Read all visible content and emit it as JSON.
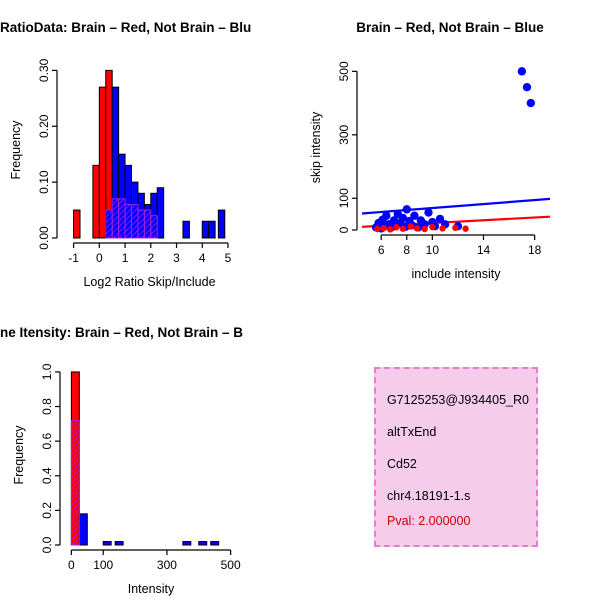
{
  "page": {
    "background": "#FFFFFF"
  },
  "colors": {
    "red": "#FF0000",
    "blue": "#0000FF",
    "purple": "#A020F0",
    "pval_red": "#CC0000"
  },
  "chart_data": [
    {
      "type": "bar",
      "title": "RatioData: Brain – Red, Not Brain – Blu",
      "xlabel": "Log2 Ratio Skip/Include",
      "ylabel": "Frequency",
      "xlim": [
        -1.45,
        5.35
      ],
      "ylim": [
        0,
        0.315
      ],
      "xticks": [
        -1,
        0,
        1,
        2,
        3,
        4,
        5
      ],
      "xtick_labels": [
        "-1",
        "0",
        "1",
        "2",
        "3",
        "4",
        "5"
      ],
      "yticks": [
        0,
        0.1,
        0.2,
        0.3
      ],
      "ytick_labels": [
        "0.00",
        "0.10",
        "0.20",
        "0.30"
      ],
      "bin_width": 0.25,
      "grid": false,
      "series": [
        {
          "name": "brain-red",
          "color": "#FF0000",
          "bins": [
            [
              -1,
              0.05
            ],
            [
              -0.25,
              0.13
            ],
            [
              0,
              0.27
            ],
            [
              0.25,
              0.3
            ],
            [
              0.5,
              0.08
            ],
            [
              0.75,
              0.07
            ],
            [
              1,
              0.06
            ],
            [
              1.25,
              0.06
            ],
            [
              1.5,
              0.05
            ],
            [
              1.75,
              0.05
            ]
          ]
        },
        {
          "name": "notbrain-blue",
          "color": "#0000FF",
          "bins": [
            [
              0.25,
              0.05
            ],
            [
              0.5,
              0.27
            ],
            [
              0.75,
              0.15
            ],
            [
              1,
              0.13
            ],
            [
              1.25,
              0.1
            ],
            [
              1.5,
              0.08
            ],
            [
              1.75,
              0.06
            ],
            [
              2,
              0.08
            ],
            [
              2.25,
              0.09
            ],
            [
              3.25,
              0.03
            ],
            [
              4,
              0.03
            ],
            [
              4.25,
              0.03
            ],
            [
              4.625,
              0.05
            ]
          ]
        },
        {
          "name": "overlap-purple",
          "color": "#A020F0",
          "hatch": true,
          "bins": [
            [
              0.25,
              0.05
            ],
            [
              0.5,
              0.07
            ],
            [
              0.75,
              0.07
            ],
            [
              1,
              0.06
            ],
            [
              1.25,
              0.06
            ],
            [
              1.5,
              0.05
            ],
            [
              1.75,
              0.05
            ],
            [
              2,
              0.04
            ]
          ]
        }
      ]
    },
    {
      "type": "scatter",
      "title": "Brain – Red, Not Brain – Blue",
      "xlabel": "include intensity",
      "ylabel": "skip intensity",
      "xlim": [
        4.5,
        19.2
      ],
      "ylim": [
        0,
        520
      ],
      "xticks": [
        6,
        8,
        10,
        14,
        18
      ],
      "xtick_labels": [
        "6",
        "8",
        "10",
        "14",
        "18"
      ],
      "yticks": [
        0,
        100,
        300,
        500
      ],
      "ytick_labels": [
        "0",
        "100",
        "300",
        "500"
      ],
      "grid": false,
      "lines": [
        {
          "name": "brain-fit",
          "color": "#FF0000",
          "x1": 4.5,
          "y1": 10,
          "x2": 19.2,
          "y2": 42
        },
        {
          "name": "notbrain-fit",
          "color": "#0000FF",
          "x1": 4.5,
          "y1": 52,
          "x2": 19.2,
          "y2": 98
        }
      ],
      "points": [
        {
          "name": "notbrain",
          "color": "#0000FF",
          "r": 4.2,
          "data": [
            [
              5.6,
              8
            ],
            [
              5.8,
              22
            ],
            [
              6,
              5
            ],
            [
              6.1,
              32
            ],
            [
              6.3,
              12
            ],
            [
              6.4,
              45
            ],
            [
              6.6,
              18
            ],
            [
              6.8,
              8
            ],
            [
              7,
              30
            ],
            [
              7.1,
              12
            ],
            [
              7.3,
              50
            ],
            [
              7.5,
              22
            ],
            [
              7.7,
              38
            ],
            [
              7.9,
              10
            ],
            [
              8,
              65
            ],
            [
              8.2,
              28
            ],
            [
              8.4,
              15
            ],
            [
              8.6,
              45
            ],
            [
              8.9,
              8
            ],
            [
              9.1,
              30
            ],
            [
              9.4,
              18
            ],
            [
              9.7,
              55
            ],
            [
              10,
              25
            ],
            [
              10.2,
              12
            ],
            [
              10.6,
              35
            ],
            [
              11,
              18
            ],
            [
              12,
              12
            ],
            [
              17,
              500
            ],
            [
              17.4,
              450
            ],
            [
              17.7,
              400
            ]
          ]
        },
        {
          "name": "brain",
          "color": "#FF0000",
          "r": 3.2,
          "data": [
            [
              5.7,
              3
            ],
            [
              6.2,
              6
            ],
            [
              6.7,
              2
            ],
            [
              7.2,
              9
            ],
            [
              7.7,
              4
            ],
            [
              8.3,
              11
            ],
            [
              8.8,
              5
            ],
            [
              9.4,
              3
            ],
            [
              10,
              9
            ],
            [
              10.8,
              5
            ],
            [
              11.8,
              7
            ],
            [
              12.6,
              4
            ]
          ]
        }
      ]
    },
    {
      "type": "bar",
      "title": "ne Itensity: Brain – Red, Not Brain – B",
      "xlabel": "Intensity",
      "ylabel": "Frequency",
      "xlim": [
        -20,
        520
      ],
      "ylim": [
        0,
        1.04
      ],
      "xticks": [
        0,
        100,
        300,
        500
      ],
      "xtick_labels": [
        "0",
        "100",
        "300",
        "500"
      ],
      "yticks": [
        0,
        0.2,
        0.4,
        0.6,
        0.8,
        1
      ],
      "ytick_labels": [
        "0.0",
        "0.2",
        "0.4",
        "0.6",
        "0.8",
        "1.0"
      ],
      "bin_width": 25,
      "grid": false,
      "series": [
        {
          "name": "brain-red",
          "color": "#FF0000",
          "bins": [
            [
              0,
              1
            ]
          ]
        },
        {
          "name": "notbrain-blue",
          "color": "#0000FF",
          "bins": [
            [
              25,
              0.18
            ],
            [
              100,
              0.02
            ],
            [
              137.5,
              0.02
            ],
            [
              350,
              0.02
            ],
            [
              400,
              0.02
            ],
            [
              437.5,
              0.02
            ]
          ]
        },
        {
          "name": "overlap-purple",
          "color": "#A020F0",
          "hatch": true,
          "bins": [
            [
              0,
              0.72
            ]
          ]
        }
      ]
    }
  ],
  "info_box": {
    "fill": "#F5CCE9",
    "border_color": "#E87AD0",
    "lines": [
      {
        "text": "G7125253@J934405_R0",
        "color": "#000000"
      },
      {
        "text": "altTxEnd",
        "color": "#000000"
      },
      {
        "text": "Cd52",
        "color": "#000000"
      },
      {
        "text": "chr4.18191-1.s",
        "color": "#000000"
      },
      {
        "text": "Pval: 2.000000",
        "color": "#CC0000"
      }
    ]
  }
}
